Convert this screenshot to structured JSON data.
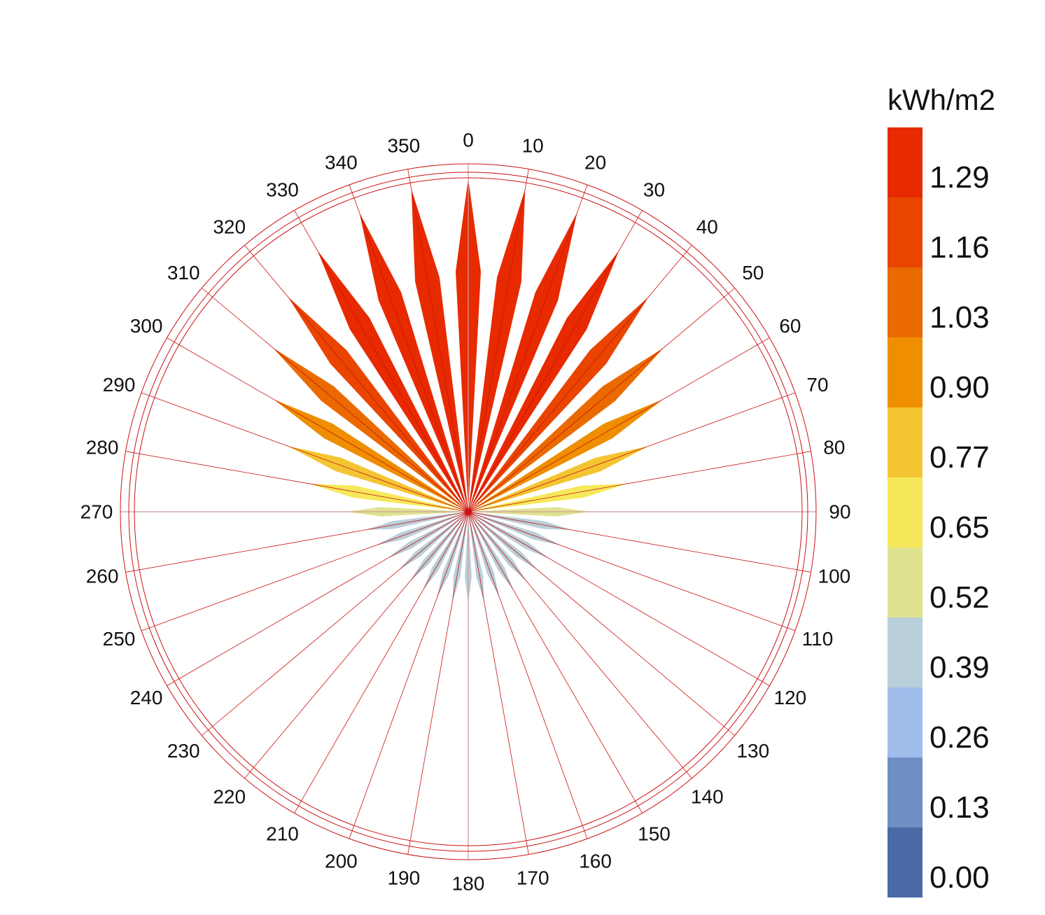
{
  "chart_data": {
    "type": "radial-bar",
    "angles": [
      0,
      10,
      20,
      30,
      40,
      50,
      60,
      70,
      80,
      90,
      100,
      110,
      120,
      130,
      140,
      150,
      160,
      170,
      180,
      190,
      200,
      210,
      220,
      230,
      240,
      250,
      260,
      270,
      280,
      290,
      300,
      310,
      320,
      330,
      340,
      350
    ],
    "values": [
      1.425,
      1.4,
      1.36,
      1.29,
      1.2,
      1.09,
      0.96,
      0.82,
      0.69,
      0.52,
      0.45,
      0.42,
      0.4,
      0.39,
      0.39,
      0.39,
      0.39,
      0.39,
      0.39,
      0.39,
      0.39,
      0.39,
      0.39,
      0.39,
      0.4,
      0.42,
      0.45,
      0.52,
      0.69,
      0.82,
      0.96,
      1.09,
      1.2,
      1.29,
      1.36,
      1.4
    ],
    "angle_tick_labels": [
      "0",
      "10",
      "20",
      "30",
      "40",
      "50",
      "60",
      "70",
      "80",
      "90",
      "100",
      "110",
      "120",
      "130",
      "140",
      "150",
      "160",
      "170",
      "180",
      "190",
      "200",
      "210",
      "220",
      "230",
      "240",
      "250",
      "260",
      "270",
      "280",
      "290",
      "300",
      "310",
      "320",
      "330",
      "340",
      "350"
    ],
    "rmax": 1.43,
    "legend": {
      "title": "kWh/m2",
      "tick_labels": [
        "0.00",
        "0.13",
        "0.26",
        "0.39",
        "0.52",
        "0.65",
        "0.77",
        "0.90",
        "1.03",
        "1.16",
        "1.29"
      ],
      "colors": [
        "#4a6aa6",
        "#6f8fc4",
        "#a0bdec",
        "#b9cfd9",
        "#dfe38f",
        "#f6e85a",
        "#f4c533",
        "#ee8e00",
        "#ea6a00",
        "#e94500",
        "#e82a00"
      ]
    }
  }
}
